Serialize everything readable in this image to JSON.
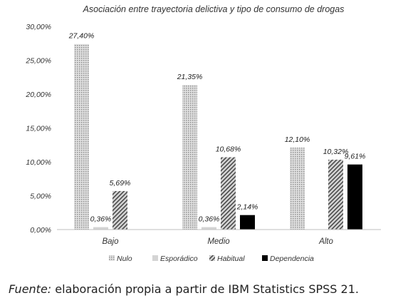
{
  "chart_data": {
    "type": "bar",
    "title": "Asociación entre trayectoria delictiva y tipo de consumo de drogas",
    "categories": [
      "Bajo",
      "Medio",
      "Alto"
    ],
    "series": [
      {
        "name": "Nulo",
        "values": [
          27.4,
          21.35,
          12.1
        ],
        "labels": [
          "27,40%",
          "21,35%",
          "12,10%"
        ],
        "color": "#c9c9c9",
        "pattern": "dots"
      },
      {
        "name": "Esporádico",
        "values": [
          0.36,
          0.36,
          null
        ],
        "labels": [
          "0,36%",
          "0,36%",
          ""
        ],
        "color": "#d4d4d4",
        "pattern": "solid"
      },
      {
        "name": "Habitual",
        "values": [
          5.69,
          10.68,
          10.32
        ],
        "labels": [
          "5,69%",
          "10,68%",
          "10,32%"
        ],
        "color": "#8a8a8a",
        "pattern": "diagonal"
      },
      {
        "name": "Dependencia",
        "values": [
          null,
          2.14,
          9.61
        ],
        "labels": [
          "",
          "2,14%",
          "9,61%"
        ],
        "color": "#000000",
        "pattern": "solid"
      }
    ],
    "ylim": [
      0,
      30
    ],
    "yticks": [
      "0,00%",
      "5,00%",
      "10,00%",
      "15,00%",
      "20,00%",
      "25,00%",
      "30,00%"
    ],
    "ytick_values": [
      0,
      5,
      10,
      15,
      20,
      25,
      30
    ],
    "grid": false,
    "legend_position": "bottom"
  },
  "source": {
    "label": "Fuente:",
    "text": " elaboración propia a partir de IBM Statistics SPSS 21."
  }
}
